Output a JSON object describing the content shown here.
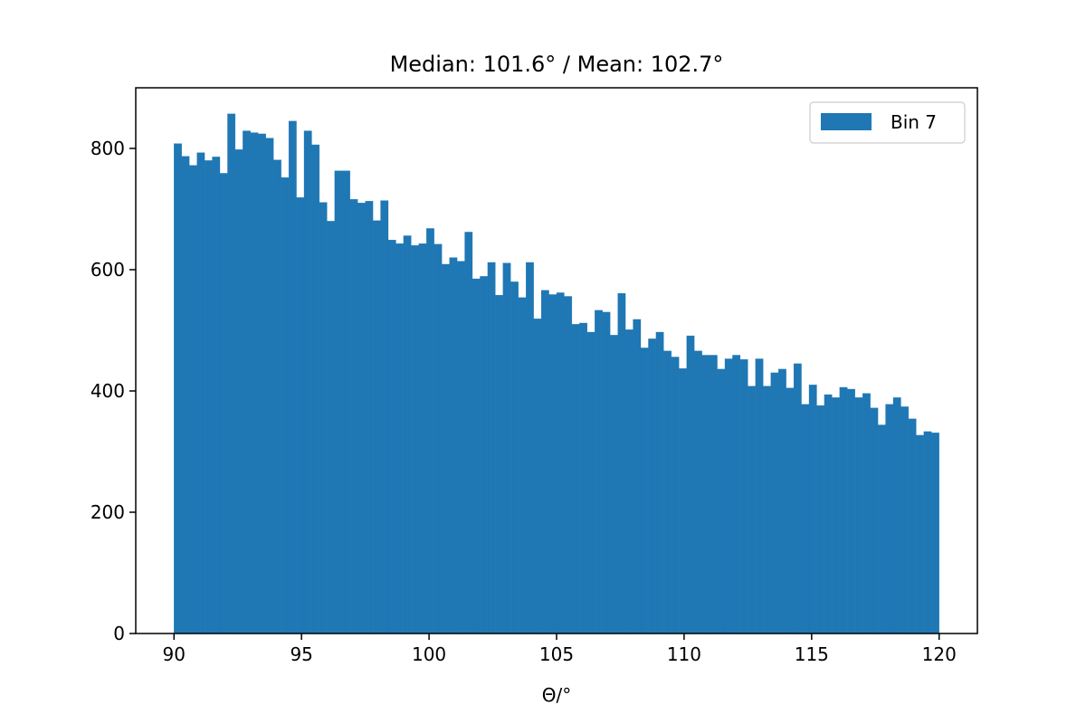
{
  "chart_data": {
    "type": "bar",
    "title": "Median: 101.6° / Mean: 102.7°",
    "xlabel": "Θ/°",
    "ylabel": "",
    "xlim": [
      88.5,
      121.5
    ],
    "ylim": [
      0,
      900
    ],
    "xticks": [
      90,
      95,
      100,
      105,
      110,
      115,
      120
    ],
    "yticks": [
      0,
      200,
      400,
      600,
      800
    ],
    "bin_start": 90,
    "bin_width": 0.3,
    "color": "#1f77b4",
    "legend_position": "upper right",
    "series": [
      {
        "name": "Bin 7",
        "values": [
          808,
          787,
          772,
          793,
          780,
          786,
          759,
          857,
          798,
          829,
          826,
          824,
          817,
          781,
          752,
          845,
          719,
          829,
          806,
          711,
          680,
          763,
          763,
          716,
          710,
          713,
          681,
          714,
          649,
          643,
          656,
          640,
          643,
          668,
          642,
          609,
          620,
          614,
          662,
          585,
          589,
          612,
          558,
          611,
          580,
          554,
          612,
          519,
          566,
          559,
          562,
          556,
          510,
          512,
          497,
          533,
          530,
          492,
          561,
          501,
          518,
          471,
          486,
          497,
          466,
          456,
          437,
          491,
          466,
          459,
          459,
          436,
          453,
          459,
          452,
          408,
          453,
          408,
          430,
          436,
          405,
          445,
          378,
          410,
          376,
          394,
          389,
          406,
          403,
          389,
          396,
          372,
          344,
          378,
          389,
          374,
          354,
          327,
          333,
          331
        ]
      }
    ]
  }
}
